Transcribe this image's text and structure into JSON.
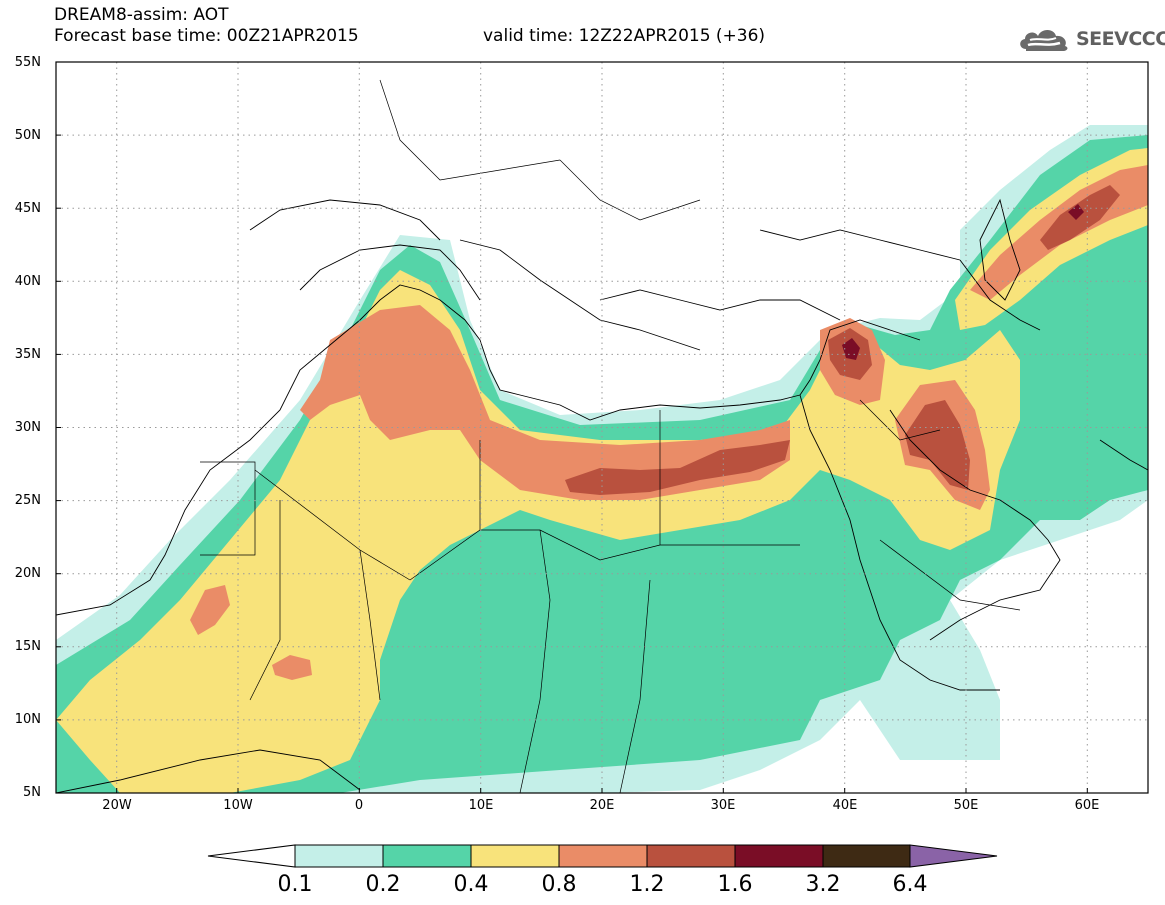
{
  "header": {
    "title_line1": "DREAM8-assim: AOT",
    "title_line2": "Forecast base time: 00Z21APR2015",
    "valid_time": "valid time: 12Z22APR2015 (+36)",
    "logo_text": "SEEVCCC",
    "logo_icon": "cloud-icon"
  },
  "map": {
    "lat_labels": [
      "55N",
      "50N",
      "45N",
      "40N",
      "35N",
      "30N",
      "25N",
      "20N",
      "15N",
      "10N",
      "5N"
    ],
    "lon_labels": [
      "20W",
      "10W",
      "0",
      "10E",
      "20E",
      "30E",
      "40E",
      "50E",
      "60E"
    ],
    "lat_range": [
      5,
      55
    ],
    "lon_range": [
      -25,
      65
    ],
    "grid": "dotted"
  },
  "colorbar": {
    "levels": [
      "0.1",
      "0.2",
      "0.4",
      "0.8",
      "1.2",
      "1.6",
      "3.2",
      "6.4"
    ],
    "colors": [
      "#ffffff",
      "#c4efe8",
      "#55d4a8",
      "#f8e37b",
      "#ea8c67",
      "#b9513e",
      "#7a0d26",
      "#3e2a14",
      "#8a63a7"
    ]
  }
}
